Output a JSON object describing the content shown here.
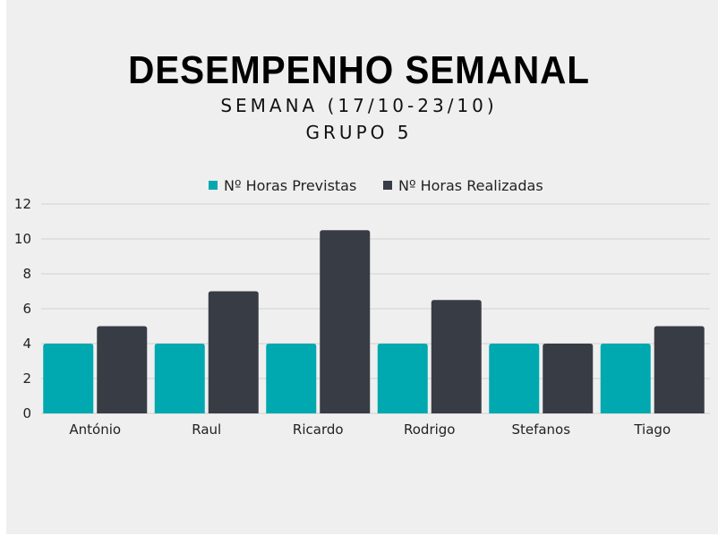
{
  "chart_data": {
    "type": "bar",
    "title": "DESEMPENHO SEMANAL",
    "subtitle_1": "SEMANA (17/10-23/10)",
    "subtitle_2": "GRUPO 5",
    "categories": [
      "António",
      "Raul",
      "Ricardo",
      "Rodrigo",
      "Stefanos",
      "Tiago"
    ],
    "series": [
      {
        "name": "Nº Horas Previstas",
        "color": "#00a8b0",
        "values": [
          4,
          4,
          4,
          4,
          4,
          4
        ]
      },
      {
        "name": "Nº Horas Realizadas",
        "color": "#383c44",
        "values": [
          5,
          7,
          10.5,
          6.5,
          4,
          5
        ]
      }
    ],
    "ylim": [
      0,
      12
    ],
    "yticks": [
      0,
      2,
      4,
      6,
      8,
      10,
      12
    ],
    "grid": true,
    "legend_position": "top"
  }
}
